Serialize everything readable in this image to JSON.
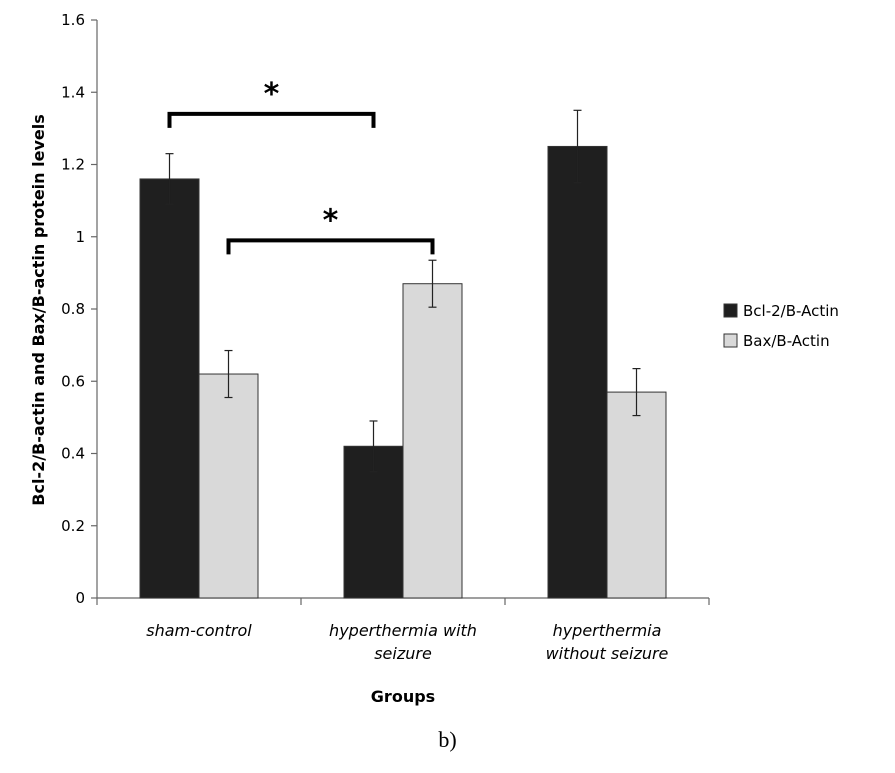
{
  "chart_data": {
    "type": "bar",
    "title": "",
    "xlabel": "Groups",
    "ylabel": "Bcl-2/B-actin and Bax/B-actin protein levels",
    "categories": [
      [
        "sham-control"
      ],
      [
        "hyperthermia with",
        "seizure"
      ],
      [
        "hyperthermia",
        "without seizure"
      ]
    ],
    "series": [
      {
        "name": "Bcl-2/B-Actin",
        "color": "#1f1f1f",
        "values": [
          1.16,
          0.42,
          1.25
        ],
        "errors": [
          0.07,
          0.07,
          0.1
        ]
      },
      {
        "name": "Bax/B-Actin",
        "color": "#d9d9d9",
        "values": [
          0.62,
          0.87,
          0.57
        ],
        "errors": [
          0.065,
          0.065,
          0.065
        ]
      }
    ],
    "ylim": [
      0,
      1.6
    ],
    "yticks": [
      "0",
      "0.2",
      "0.4",
      "0.6",
      "0.8",
      "1",
      "1.2",
      "1.4",
      "1.6"
    ],
    "grid": false,
    "legend_position": "right",
    "significance": [
      {
        "label": "*",
        "from": [
          0,
          0
        ],
        "to": [
          1,
          0
        ],
        "level": 1.34
      },
      {
        "label": "*",
        "from": [
          0,
          1
        ],
        "to": [
          1,
          1
        ],
        "level": 0.99
      }
    ]
  },
  "panel_label": "b)"
}
